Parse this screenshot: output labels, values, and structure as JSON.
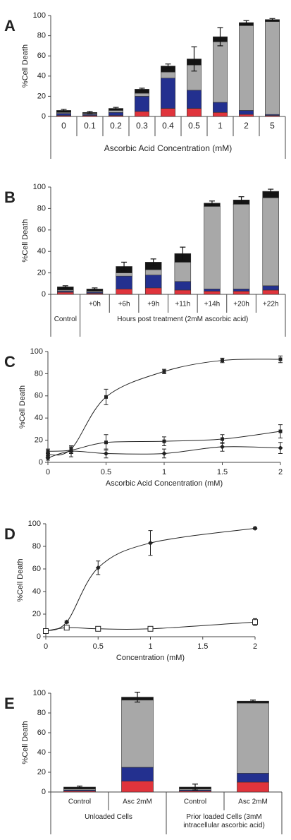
{
  "chart_data": [
    {
      "type": "stacked_bar",
      "label": "A",
      "ylabel": "%Cell Death",
      "xlabel": "Ascorbic Acid Concentration (mM)",
      "categories": [
        "0",
        "0.1",
        "0.2",
        "0.3",
        "0.4",
        "0.5",
        "1",
        "2",
        "5"
      ],
      "series": [
        {
          "color": "#e0343c",
          "values": [
            1,
            1,
            1,
            5,
            8,
            8,
            4,
            2,
            1
          ]
        },
        {
          "color": "#23308f",
          "values": [
            2,
            1,
            3,
            15,
            30,
            18,
            10,
            4,
            1
          ]
        },
        {
          "color": "#a8a8a8",
          "values": [
            1,
            1,
            2,
            3,
            6,
            25,
            60,
            84,
            92
          ]
        },
        {
          "color": "#141414",
          "values": [
            2,
            1,
            2,
            4,
            6,
            6,
            5,
            3,
            2
          ]
        }
      ],
      "errors": [
        1,
        1,
        1,
        1,
        2,
        12,
        9,
        2,
        1
      ],
      "ylim": [
        0,
        100
      ],
      "yticks": [
        0,
        20,
        40,
        60,
        80,
        100
      ]
    },
    {
      "type": "stacked_bar",
      "label": "B",
      "ylabel": "%Cell Death",
      "categories": [
        null,
        "+0h",
        "+6h",
        "+9h",
        "+11h",
        "+14h",
        "+20h",
        "+22h"
      ],
      "group_labels": [
        "Control",
        "Hours post treatment (2mM ascorbic acid)"
      ],
      "series": [
        {
          "color": "#e0343c",
          "values": [
            2,
            1,
            5,
            6,
            4,
            3,
            3,
            4
          ]
        },
        {
          "color": "#23308f",
          "values": [
            1,
            1,
            12,
            12,
            8,
            2,
            2,
            4
          ]
        },
        {
          "color": "#a8a8a8",
          "values": [
            1,
            1,
            3,
            5,
            18,
            77,
            79,
            82
          ]
        },
        {
          "color": "#141414",
          "values": [
            3,
            2,
            6,
            7,
            8,
            3,
            4,
            6
          ]
        }
      ],
      "errors": [
        1,
        1,
        4,
        3,
        6,
        2,
        3,
        2
      ],
      "ylim": [
        0,
        100
      ],
      "yticks": [
        0,
        20,
        40,
        60,
        80,
        100
      ]
    },
    {
      "type": "line",
      "label": "C",
      "ylabel": "%Cell Death",
      "xlabel": "Ascorbic Acid  Concentration (mM)",
      "x": [
        0,
        0.2,
        0.5,
        1,
        1.5,
        2
      ],
      "series": [
        {
          "color": "#222222",
          "marker": "square",
          "values": [
            7,
            12,
            59,
            82,
            92,
            93
          ],
          "errors": [
            2,
            3,
            7,
            2,
            2,
            3
          ]
        },
        {
          "color": "#222222",
          "marker": "square",
          "values": [
            10,
            11,
            18,
            19,
            21,
            28
          ],
          "errors": [
            2,
            3,
            7,
            4,
            4,
            6
          ]
        },
        {
          "color": "#222222",
          "marker": "diamond",
          "values": [
            4,
            10,
            8,
            8,
            14,
            13
          ],
          "errors": [
            2,
            5,
            4,
            4,
            4,
            5
          ]
        }
      ],
      "xlim": [
        0,
        2
      ],
      "xticks": [
        0,
        0.5,
        1,
        1.5,
        2
      ],
      "ylim": [
        0,
        100
      ],
      "yticks": [
        0,
        20,
        40,
        60,
        80,
        100
      ]
    },
    {
      "type": "line",
      "label": "D",
      "ylabel": "%Cell Death",
      "xlabel": "Concentration (mM)",
      "x": [
        0,
        0.2,
        0.5,
        1,
        2
      ],
      "series": [
        {
          "color": "#222222",
          "marker": "diamond",
          "values": [
            5,
            13,
            61,
            83,
            96
          ],
          "errors": [
            1,
            1,
            6,
            11,
            1
          ]
        },
        {
          "color": "#222222",
          "marker": "open-square",
          "values": [
            5,
            8,
            7,
            7,
            13
          ],
          "errors": [
            1,
            1,
            1,
            1,
            3
          ]
        }
      ],
      "xlim": [
        0,
        2
      ],
      "xticks": [
        0,
        0.5,
        1,
        1.5,
        2
      ],
      "ylim": [
        0,
        100
      ],
      "yticks": [
        0,
        20,
        40,
        60,
        80,
        100
      ]
    },
    {
      "type": "stacked_bar",
      "label": "E",
      "ylabel": "%Cell Death",
      "categories": [
        "Control",
        "Asc 2mM",
        "Control",
        "Asc 2mM"
      ],
      "group_labels": [
        "Unloaded Cells",
        "Prior loaded Cells (3mM intracellular ascorbic acid)"
      ],
      "series": [
        {
          "color": "#e0343c",
          "values": [
            1,
            11,
            1,
            10
          ]
        },
        {
          "color": "#23308f",
          "values": [
            1,
            14,
            1,
            9
          ]
        },
        {
          "color": "#a8a8a8",
          "values": [
            1,
            68,
            1,
            71
          ]
        },
        {
          "color": "#141414",
          "values": [
            2,
            3,
            2,
            2
          ]
        }
      ],
      "errors": [
        1,
        5,
        3,
        1
      ],
      "ylim": [
        0,
        100
      ],
      "yticks": [
        0,
        20,
        40,
        60,
        80,
        100
      ]
    }
  ]
}
